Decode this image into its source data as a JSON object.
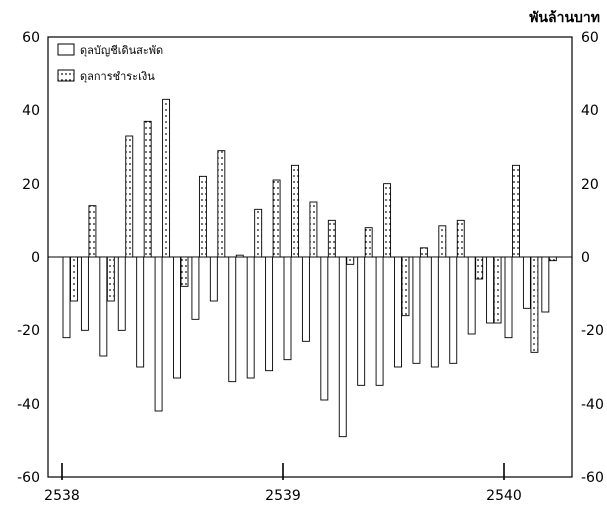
{
  "chart_data": {
    "type": "bar",
    "unit_label": "พันล้านบาท",
    "ylim": [
      -60,
      60
    ],
    "y_ticks": [
      60,
      40,
      20,
      0,
      -20,
      -40,
      -60
    ],
    "x_tick_labels": [
      "2538",
      "2539",
      "2540"
    ],
    "x_major_ticks_at_month": [
      0,
      12,
      24
    ],
    "legend_position": "top-left",
    "grid": false,
    "colors": {
      "bar_fill_current": "#ffffff",
      "bar_fill_payment": "#ffffff",
      "stroke": "#000000",
      "dots": "#000000"
    },
    "series": [
      {
        "name": "ดุลบัญชีเดินสะพัด",
        "pattern": "plain",
        "values": [
          -22,
          -20,
          -27,
          -20,
          -30,
          -42,
          -33,
          -17,
          -12,
          -34,
          -33,
          -31,
          -28,
          -23,
          -39,
          -49,
          -35,
          -35,
          -30,
          -29,
          -30,
          -29,
          -21,
          -18,
          -22,
          -14,
          -15
        ]
      },
      {
        "name": "ดุลการชำระเงิน",
        "pattern": "dotted",
        "values": [
          -12,
          14,
          -12,
          33,
          37,
          43,
          -8,
          22,
          29,
          0.5,
          13,
          21,
          25,
          15,
          10,
          -2,
          8,
          20,
          -16,
          2.5,
          8.5,
          10,
          -6,
          -18,
          25,
          -26,
          -1
        ]
      }
    ]
  }
}
